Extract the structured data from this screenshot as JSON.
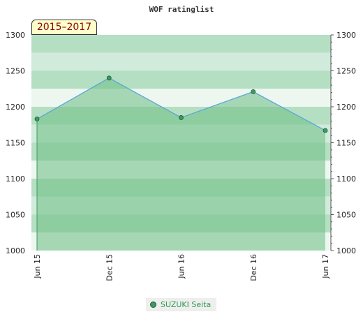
{
  "chart_data": {
    "type": "line",
    "title": "WOF ratinglist",
    "period_label": "2015–2017",
    "x_labels": [
      "Jun 15",
      "Dec 15",
      "Jun 16",
      "Dec 16",
      "Jun 17"
    ],
    "ylim": [
      1000,
      1300
    ],
    "y_ticks": [
      1000,
      1050,
      1100,
      1150,
      1200,
      1250,
      1300
    ],
    "series": [
      {
        "name": "SUZUKI Seita",
        "values": [
          1183,
          1240,
          1185,
          1221,
          1167
        ]
      }
    ],
    "legend_position": "bottom-center",
    "grid": true,
    "colors": {
      "line": "#5aa8d8",
      "marker": "#3f9a5e",
      "area": "#6cbd83",
      "legend_text": "#2e9d4c"
    }
  }
}
